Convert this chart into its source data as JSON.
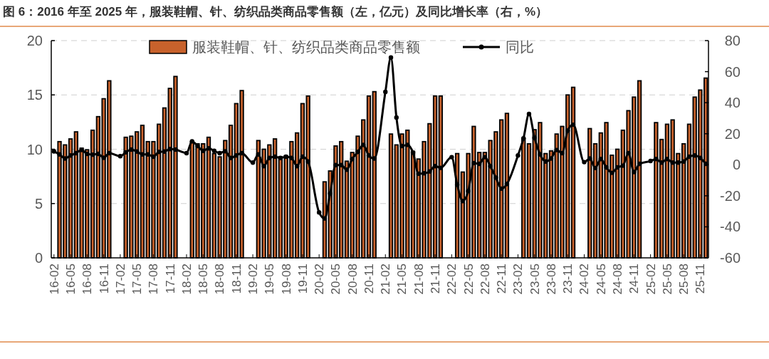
{
  "chart_data": {
    "type": "bar",
    "title": "图 6：2016 年至 2025 年，服装鞋帽、针、纺织品类商品零售额（左，亿元）及同比增长率（右，%）",
    "categories": [
      "16-02",
      null,
      null,
      "16-05",
      null,
      null,
      "16-08",
      null,
      null,
      "16-11",
      null,
      null,
      "17-02",
      null,
      null,
      "17-05",
      null,
      null,
      "17-08",
      null,
      null,
      "17-11",
      null,
      null,
      "18-02",
      null,
      null,
      "18-05",
      null,
      null,
      "18-08",
      null,
      null,
      "18-11",
      null,
      null,
      "19-02",
      null,
      null,
      "19-05",
      null,
      null,
      "19-08",
      null,
      null,
      "19-11",
      null,
      null,
      "20-02",
      null,
      null,
      "20-05",
      null,
      null,
      "20-08",
      null,
      null,
      "20-11",
      null,
      null,
      "21-02",
      null,
      null,
      "21-05",
      null,
      null,
      "21-08",
      null,
      null,
      "21-11",
      null,
      null,
      "22-02",
      null,
      null,
      "22-05",
      null,
      null,
      "22-08",
      null,
      null,
      "22-11",
      null,
      null,
      "23-02",
      null,
      null,
      "23-05",
      null,
      null,
      "23-08",
      null,
      null,
      "23-11",
      null,
      null,
      "24-02",
      null,
      null,
      "24-05",
      null,
      null,
      "24-08",
      null,
      null,
      "24-11",
      null,
      null,
      "25-02",
      null,
      null,
      "25-05",
      null,
      null,
      "25-08",
      null,
      null,
      "25-11",
      null
    ],
    "series": [
      {
        "name": "服装鞋帽、针、纺织品类商品零售额",
        "color": "#c8622c",
        "values": [
          null,
          10.7,
          10.4,
          10.95,
          11.6,
          10.1,
          9.95,
          11.75,
          13.0,
          14.65,
          16.3,
          null,
          null,
          11.1,
          11.2,
          11.6,
          12.2,
          10.7,
          10.7,
          12.3,
          13.8,
          15.6,
          16.7,
          null,
          null,
          10.7,
          10.5,
          10.5,
          11.1,
          9.6,
          9.3,
          10.8,
          12.2,
          14.2,
          15.4,
          null,
          null,
          10.8,
          10.0,
          10.4,
          10.95,
          9.3,
          9.4,
          10.7,
          11.5,
          14.2,
          14.9,
          null,
          null,
          7.0,
          8.0,
          10.3,
          10.7,
          8.9,
          9.7,
          11.2,
          12.7,
          14.9,
          15.3,
          null,
          null,
          11.4,
          10.4,
          11.4,
          11.75,
          9.8,
          9.1,
          10.7,
          12.35,
          14.9,
          14.9,
          null,
          null,
          9.6,
          7.9,
          9.6,
          12.1,
          9.7,
          9.7,
          10.8,
          11.6,
          12.7,
          13.3,
          null,
          null,
          11.0,
          10.5,
          11.8,
          12.45,
          9.6,
          9.85,
          11.4,
          12.1,
          15.0,
          15.7,
          null,
          null,
          11.9,
          10.5,
          11.5,
          12.45,
          9.45,
          10.0,
          11.75,
          13.55,
          14.8,
          16.3,
          null,
          null,
          12.45,
          10.9,
          12.3,
          12.7,
          9.6,
          10.5,
          12.3,
          14.8,
          15.45,
          16.55
        ]
      },
      {
        "type": "line",
        "name": "同比",
        "color": "#000000",
        "axis": "y2",
        "marker": "circle",
        "values": [
          8.6,
          6.7,
          4.0,
          6.0,
          7.5,
          9.5,
          7.0,
          6.5,
          7.0,
          4.5,
          7.5,
          null,
          5.5,
          8.0,
          9.8,
          8.5,
          6.7,
          6.7,
          5.2,
          8.3,
          8.5,
          10.1,
          9.8,
          null,
          7.5,
          15.1,
          12.1,
          9.0,
          10.6,
          9.0,
          7.5,
          8.7,
          4.4,
          6.0,
          7.5,
          null,
          1.4,
          6.7,
          -0.9,
          4.4,
          5.2,
          4.4,
          5.2,
          4.4,
          -0.9,
          5.2,
          2.1,
          null,
          -30.7,
          -34.6,
          -18.5,
          -0.2,
          -0.2,
          -3.2,
          3.7,
          8.3,
          12.8,
          6.0,
          4.0,
          null,
          47.0,
          69.1,
          30.4,
          12.1,
          12.8,
          7.8,
          -5.8,
          -5.5,
          -4.3,
          -0.9,
          -2.0,
          null,
          4.9,
          -12.8,
          -23.4,
          -17.0,
          1.1,
          0.6,
          4.9,
          -0.9,
          -8.3,
          -15.4,
          -12.4,
          null,
          6.0,
          17.0,
          32.7,
          17.4,
          6.7,
          2.1,
          4.0,
          9.5,
          7.5,
          22.0,
          25.8,
          null,
          1.7,
          4.0,
          -2.1,
          3.7,
          -1.7,
          -5.2,
          -1.7,
          -0.6,
          7.5,
          -4.7,
          0.6,
          null,
          2.4,
          3.7,
          1.4,
          3.7,
          1.4,
          1.4,
          2.1,
          5.2,
          6.0,
          4.4,
          0.6
        ]
      }
    ],
    "ylim": [
      0,
      20
    ],
    "yticks": [
      0,
      5,
      10,
      15,
      20
    ],
    "y2lim": [
      -60,
      80
    ],
    "y2ticks": [
      -60,
      -40,
      -20,
      0,
      20,
      40,
      60,
      80
    ],
    "grid": "y",
    "legend": "top"
  }
}
